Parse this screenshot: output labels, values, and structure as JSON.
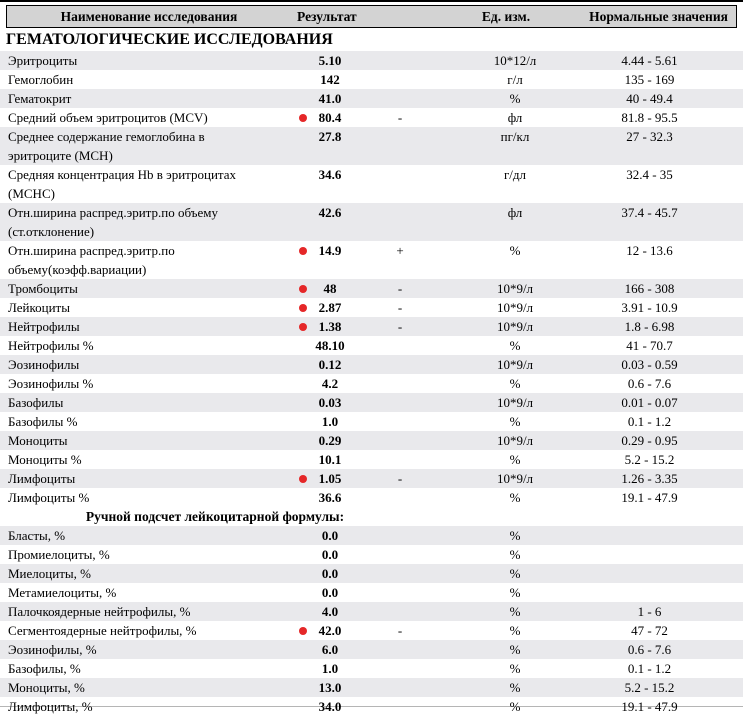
{
  "header": {
    "columns": [
      "Наименование исследования",
      "Результат",
      "Ед. изм.",
      "Нормальные значения"
    ]
  },
  "colors": {
    "header_bg": "#d3d3d3",
    "row_shade": "#e9e9ec",
    "abnormal_dot": "#e52728",
    "top_rule": "#000000"
  },
  "section1": {
    "title": "ГЕМАТОЛОГИЧЕСКИЕ ИССЛЕДОВАНИЯ",
    "rows": [
      {
        "name": "Эритроциты",
        "result": "5.10",
        "flag": "",
        "marked": false,
        "units": "10*12/л",
        "normal": "4.44 - 5.61"
      },
      {
        "name": "Гемоглобин",
        "result": "142",
        "flag": "",
        "marked": false,
        "units": "г/л",
        "normal": "135 - 169"
      },
      {
        "name": "Гематокрит",
        "result": "41.0",
        "flag": "",
        "marked": false,
        "units": "%",
        "normal": "40 - 49.4"
      },
      {
        "name": "Средний объем эритроцитов (MCV)",
        "result": "80.4",
        "flag": "-",
        "marked": true,
        "units": "фл",
        "normal": "81.8 - 95.5"
      },
      {
        "name": "Среднее содержание гемоглобина в эритроците (MCH)",
        "result": "27.8",
        "flag": "",
        "marked": false,
        "units": "пг/кл",
        "normal": "27 - 32.3"
      },
      {
        "name": "Средняя концентрация Hb в эритроцитах (MCHC)",
        "result": "34.6",
        "flag": "",
        "marked": false,
        "units": "г/дл",
        "normal": "32.4 - 35"
      },
      {
        "name": "Отн.ширина распред.эритр.по объему (ст.отклонение)",
        "result": "42.6",
        "flag": "",
        "marked": false,
        "units": "фл",
        "normal": "37.4 - 45.7"
      },
      {
        "name": "Отн.ширина распред.эритр.по объему(коэфф.вариации)",
        "result": "14.9",
        "flag": "+",
        "marked": true,
        "units": "%",
        "normal": "12 - 13.6"
      },
      {
        "name": "Тромбоциты",
        "result": "48",
        "flag": "-",
        "marked": true,
        "units": "10*9/л",
        "normal": "166 - 308"
      },
      {
        "name": "Лейкоциты",
        "result": "2.87",
        "flag": "-",
        "marked": true,
        "units": "10*9/л",
        "normal": "3.91 - 10.9"
      },
      {
        "name": "Нейтрофилы",
        "result": "1.38",
        "flag": "-",
        "marked": true,
        "units": "10*9/л",
        "normal": "1.8 - 6.98"
      },
      {
        "name": "Нейтрофилы %",
        "result": "48.10",
        "flag": "",
        "marked": false,
        "units": "%",
        "normal": "41 - 70.7"
      },
      {
        "name": "Эозинофилы",
        "result": "0.12",
        "flag": "",
        "marked": false,
        "units": "10*9/л",
        "normal": "0.03 - 0.59"
      },
      {
        "name": "Эозинофилы %",
        "result": "4.2",
        "flag": "",
        "marked": false,
        "units": "%",
        "normal": "0.6 - 7.6"
      },
      {
        "name": "Базофилы",
        "result": "0.03",
        "flag": "",
        "marked": false,
        "units": "10*9/л",
        "normal": "0.01 - 0.07"
      },
      {
        "name": "Базофилы %",
        "result": "1.0",
        "flag": "",
        "marked": false,
        "units": "%",
        "normal": "0.1 - 1.2"
      },
      {
        "name": "Моноциты",
        "result": "0.29",
        "flag": "",
        "marked": false,
        "units": "10*9/л",
        "normal": "0.29 - 0.95"
      },
      {
        "name": "Моноциты %",
        "result": "10.1",
        "flag": "",
        "marked": false,
        "units": "%",
        "normal": "5.2 - 15.2"
      },
      {
        "name": "Лимфоциты",
        "result": "1.05",
        "flag": "-",
        "marked": true,
        "units": "10*9/л",
        "normal": "1.26 - 3.35"
      },
      {
        "name": "Лимфоциты %",
        "result": "36.6",
        "flag": "",
        "marked": false,
        "units": "%",
        "normal": "19.1 - 47.9"
      }
    ]
  },
  "section2": {
    "title": "Ручной подсчет лейкоцитарной формулы:",
    "rows": [
      {
        "name": "Бласты, %",
        "result": "0.0",
        "flag": "",
        "marked": false,
        "units": "%",
        "normal": ""
      },
      {
        "name": "Промиелоциты, %",
        "result": "0.0",
        "flag": "",
        "marked": false,
        "units": "%",
        "normal": ""
      },
      {
        "name": "Миелоциты, %",
        "result": "0.0",
        "flag": "",
        "marked": false,
        "units": "%",
        "normal": ""
      },
      {
        "name": "Метамиелоциты, %",
        "result": "0.0",
        "flag": "",
        "marked": false,
        "units": "%",
        "normal": ""
      },
      {
        "name": "Палочкоядерные нейтрофилы, %",
        "result": "4.0",
        "flag": "",
        "marked": false,
        "units": "%",
        "normal": "1 - 6"
      },
      {
        "name": "Сегментоядерные нейтрофилы, %",
        "result": "42.0",
        "flag": "-",
        "marked": true,
        "units": "%",
        "normal": "47 - 72"
      },
      {
        "name": "Эозинофилы, %",
        "result": "6.0",
        "flag": "",
        "marked": false,
        "units": "%",
        "normal": "0.6 - 7.6"
      },
      {
        "name": "Базофилы, %",
        "result": "1.0",
        "flag": "",
        "marked": false,
        "units": "%",
        "normal": "0.1 - 1.2"
      },
      {
        "name": "Моноциты, %",
        "result": "13.0",
        "flag": "",
        "marked": false,
        "units": "%",
        "normal": "5.2 - 15.2"
      },
      {
        "name": "Лимфоциты, %",
        "result": "34.0",
        "flag": "",
        "marked": false,
        "units": "%",
        "normal": "19.1 - 47.9"
      }
    ]
  }
}
